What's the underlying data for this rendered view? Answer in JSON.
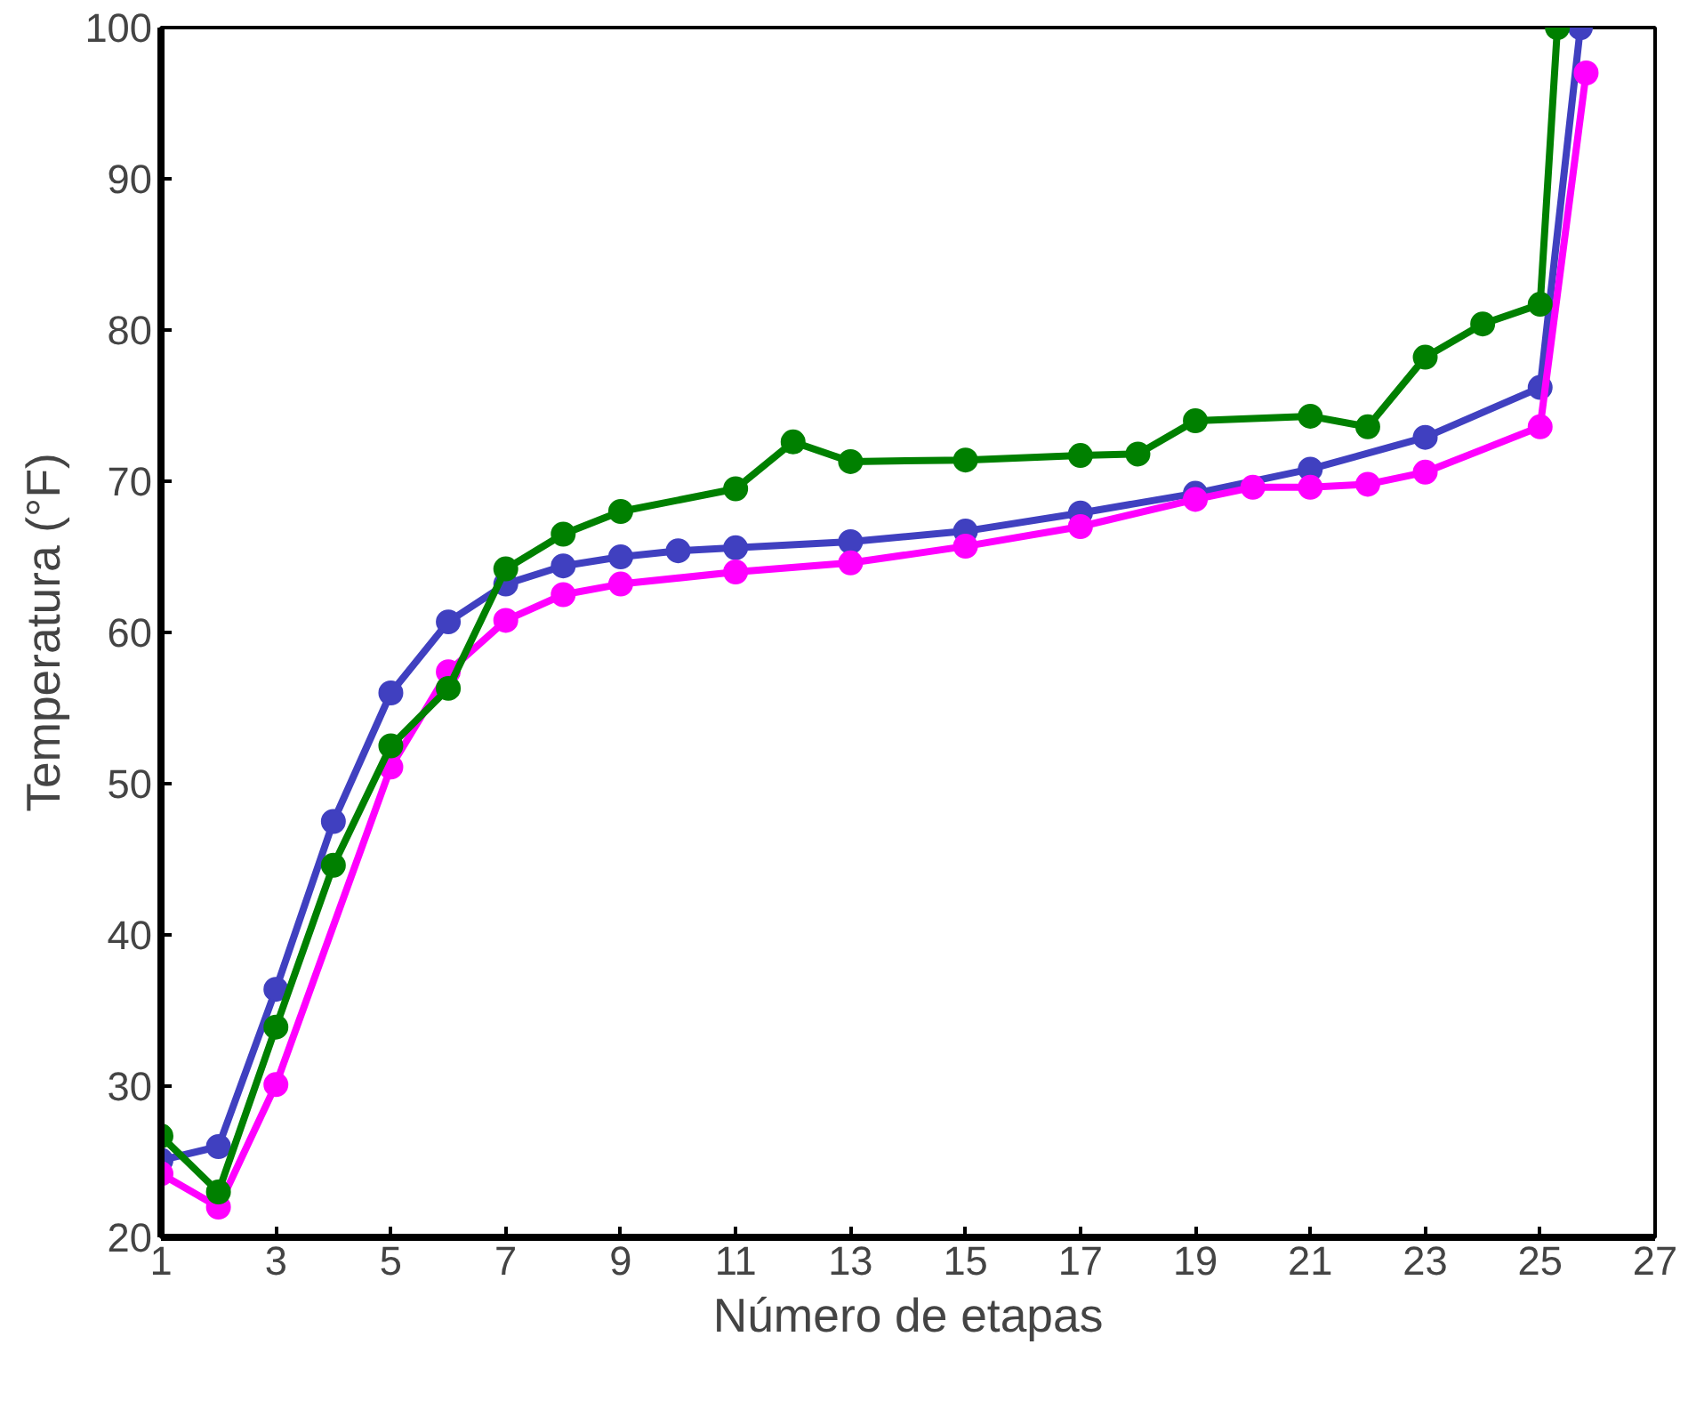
{
  "chart_data": {
    "type": "line",
    "xlabel": "Número de etapas",
    "ylabel": "Temperatura (°F)",
    "xlim": [
      1,
      27
    ],
    "ylim": [
      20,
      100
    ],
    "xticks": [
      1,
      3,
      5,
      7,
      9,
      11,
      13,
      15,
      17,
      19,
      21,
      23,
      25,
      27
    ],
    "yticks": [
      20,
      30,
      40,
      50,
      60,
      70,
      80,
      90,
      100
    ],
    "grid": false,
    "marker": "circle",
    "line_style": "solid",
    "series": [
      {
        "color": "#4040c0",
        "x": [
          1,
          2,
          3,
          4,
          5,
          6,
          7,
          8,
          9,
          10,
          11,
          13,
          15,
          17,
          19,
          21,
          23,
          25,
          25.7
        ],
        "values": [
          25.1,
          26.0,
          36.4,
          47.5,
          56.0,
          60.7,
          63.2,
          64.4,
          65.0,
          65.4,
          65.6,
          66.0,
          66.7,
          67.9,
          69.2,
          70.8,
          72.9,
          76.2,
          100
        ]
      },
      {
        "color": "#ff00ff",
        "x": [
          1,
          2,
          3,
          5,
          6,
          7,
          8,
          9,
          11,
          13,
          15,
          17,
          19,
          20,
          21,
          22,
          23,
          25,
          25.8
        ],
        "values": [
          24.2,
          22.0,
          30.1,
          51.1,
          57.4,
          60.8,
          62.5,
          63.2,
          64.0,
          64.6,
          65.7,
          67.0,
          68.8,
          69.6,
          69.6,
          69.8,
          70.6,
          73.6,
          97.0
        ]
      },
      {
        "color": "#008000",
        "x": [
          1,
          2,
          3,
          4,
          5,
          6,
          7,
          8,
          9,
          11,
          12,
          13,
          15,
          17,
          18,
          19,
          21,
          22,
          23,
          24,
          25,
          25.3
        ],
        "values": [
          26.7,
          23.0,
          33.9,
          44.6,
          52.5,
          56.3,
          64.2,
          66.5,
          68.0,
          69.5,
          72.6,
          71.3,
          71.4,
          71.7,
          71.8,
          74.0,
          74.3,
          73.6,
          78.2,
          80.4,
          81.7,
          100
        ]
      }
    ]
  }
}
